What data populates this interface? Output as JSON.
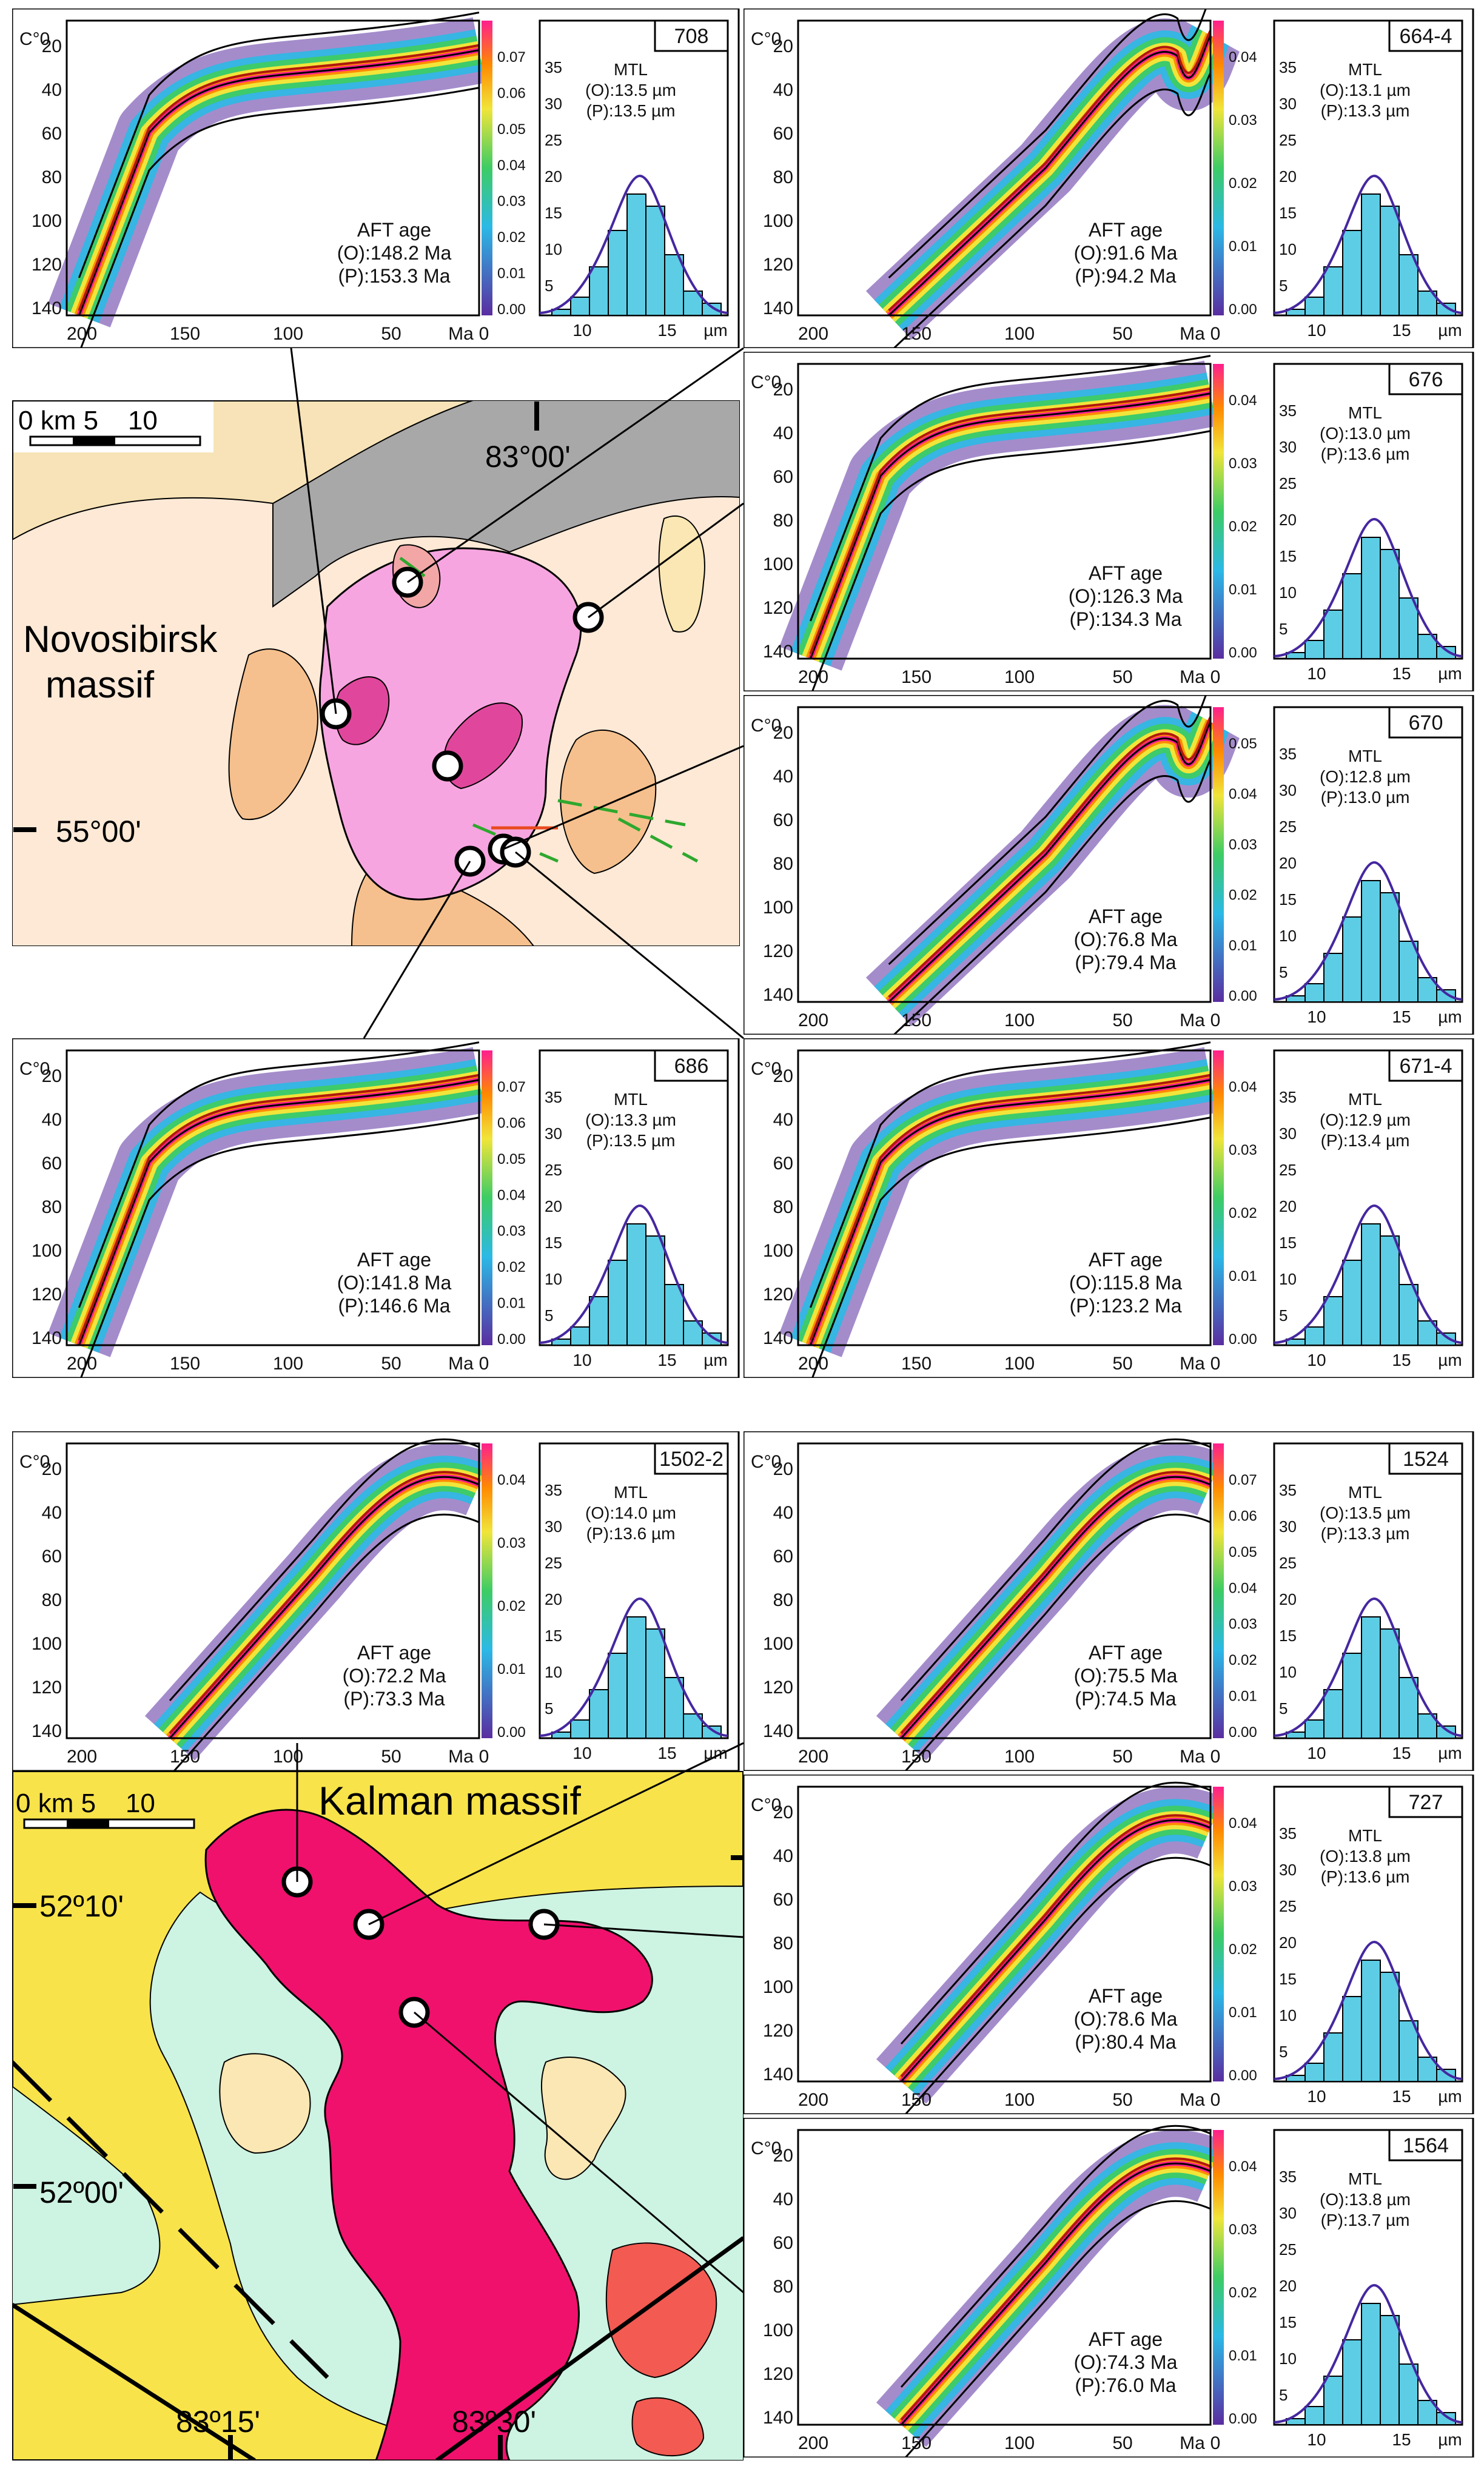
{
  "common": {
    "temp_axis_label": "C°0",
    "temp_ticks": [
      "20",
      "40",
      "60",
      "80",
      "100",
      "120",
      "140"
    ],
    "time_ticks": [
      "200",
      "150",
      "100",
      "50"
    ],
    "time_unit": "Ma",
    "time_end_label": "0",
    "mtl_label": "MTL",
    "hist_ticks": [
      "5",
      "10",
      "15",
      "20",
      "25",
      "30",
      "35"
    ],
    "hist_x_ticks": [
      "10",
      "15"
    ],
    "hist_x_unit": "µm",
    "aft_label": "AFT age"
  },
  "colors": {
    "low": "#5a2da0",
    "mid1": "#2bb9e6",
    "mid2": "#3dcc64",
    "mid3": "#f1e53a",
    "high": "#ff1f8e",
    "path": "#b0180e",
    "envelope": "#000000",
    "hist_bar": "#5ccde4",
    "fit": "#4527a0",
    "granite": "#f7a5e0",
    "granite_core": "#e0479c",
    "kalman": "#f0116d",
    "kalman_red": "#f25a52",
    "yellow": "#f8e34a",
    "mint": "#cdf3e2"
  },
  "samples": [
    {
      "id": "708",
      "aft_o": "(O):148.2 Ma",
      "aft_p": "(P):153.3 Ma",
      "mtl_o": "(O):13.5 µm",
      "mtl_p": "(P):13.5 µm",
      "scale": [
        "0.07",
        "0.06",
        "0.05",
        "0.04",
        "0.03",
        "0.02",
        "0.01",
        "0.00"
      ],
      "hist_ticks": [
        "5",
        "10",
        "15",
        "20",
        "25",
        "30",
        "35"
      ]
    },
    {
      "id": "664-4",
      "aft_o": "(O):91.6 Ma",
      "aft_p": "(P):94.2 Ma",
      "mtl_o": "(O):13.1 µm",
      "mtl_p": "(P):13.3 µm",
      "scale": [
        "0.04",
        "0.03",
        "0.02",
        "0.01",
        "0.00"
      ],
      "hist_ticks": [
        "5",
        "10",
        "15",
        "20",
        "25",
        "30",
        "35"
      ]
    },
    {
      "id": "676",
      "aft_o": "(O):126.3 Ma",
      "aft_p": "(P):134.3 Ma",
      "mtl_o": "(O):13.0 µm",
      "mtl_p": "(P):13.6 µm",
      "scale": [
        "0.04",
        "0.03",
        "0.02",
        "0.01",
        "0.00"
      ],
      "hist_ticks": [
        "5",
        "10",
        "15",
        "20",
        "25",
        "30",
        "35"
      ]
    },
    {
      "id": "670",
      "aft_o": "(O):76.8 Ma",
      "aft_p": "(P):79.4 Ma",
      "mtl_o": "(O):12.8 µm",
      "mtl_p": "(P):13.0 µm",
      "scale": [
        "0.05",
        "0.04",
        "0.03",
        "0.02",
        "0.01",
        "0.00"
      ],
      "hist_ticks": [
        "5",
        "10",
        "15",
        "20",
        "25",
        "30",
        "35"
      ]
    },
    {
      "id": "686",
      "aft_o": "(O):141.8 Ma",
      "aft_p": "(P):146.6 Ma",
      "mtl_o": "(O):13.3 µm",
      "mtl_p": "(P):13.5 µm",
      "scale": [
        "0.07",
        "0.06",
        "0.05",
        "0.04",
        "0.03",
        "0.02",
        "0.01",
        "0.00"
      ],
      "hist_ticks": [
        "5",
        "10",
        "15",
        "20",
        "25",
        "30",
        "35"
      ]
    },
    {
      "id": "671-4",
      "aft_o": "(O):115.8 Ma",
      "aft_p": "(P):123.2 Ma",
      "mtl_o": "(O):12.9 µm",
      "mtl_p": "(P):13.4 µm",
      "scale": [
        "0.04",
        "0.03",
        "0.02",
        "0.01",
        "0.00"
      ],
      "hist_ticks": [
        "5",
        "10",
        "15",
        "20",
        "25",
        "30",
        "35"
      ]
    },
    {
      "id": "1502-2",
      "aft_o": "(O):72.2 Ma",
      "aft_p": "(P):73.3 Ma",
      "mtl_o": "(O):14.0 µm",
      "mtl_p": "(P):13.6 µm",
      "scale": [
        "0.04",
        "0.03",
        "0.02",
        "0.01",
        "0.00"
      ],
      "hist_ticks": [
        "5",
        "10",
        "15",
        "20",
        "25",
        "30",
        "35"
      ]
    },
    {
      "id": "1524",
      "aft_o": "(O):75.5 Ma",
      "aft_p": "(P):74.5 Ma",
      "mtl_o": "(O):13.5 µm",
      "mtl_p": "(P):13.3 µm",
      "scale": [
        "0.07",
        "0.06",
        "0.05",
        "0.04",
        "0.03",
        "0.02",
        "0.01",
        "0.00"
      ],
      "hist_ticks": [
        "5",
        "10",
        "15",
        "20",
        "25",
        "30",
        "35"
      ]
    },
    {
      "id": "727",
      "aft_o": "(O):78.6 Ma",
      "aft_p": "(P):80.4 Ma",
      "mtl_o": "(O):13.8 µm",
      "mtl_p": "(P):13.6 µm",
      "scale": [
        "0.04",
        "0.03",
        "0.02",
        "0.01",
        "0.00"
      ],
      "hist_ticks": [
        "5",
        "10",
        "15",
        "20",
        "25",
        "30",
        "35"
      ]
    },
    {
      "id": "1564",
      "aft_o": "(O):74.3 Ma",
      "aft_p": "(P):76.0 Ma",
      "mtl_o": "(O):13.8 µm",
      "mtl_p": "(P):13.7 µm",
      "scale": [
        "0.04",
        "0.03",
        "0.02",
        "0.01",
        "0.00"
      ],
      "hist_ticks": [
        "5",
        "10",
        "15",
        "20",
        "25",
        "30",
        "35"
      ]
    }
  ],
  "map_top": {
    "scale_text": "0 km 5    10",
    "massif_line1": "Novosibirsk",
    "massif_line2": "massif",
    "lon": "83°00'",
    "lat": "55°00'"
  },
  "map_bottom": {
    "scale_text": "0 km 5    10",
    "massif": "Kalman massif",
    "lat1": "52º10'",
    "lat2": "52º00'",
    "lon1": "83º15'",
    "lon2": "83º30'"
  }
}
